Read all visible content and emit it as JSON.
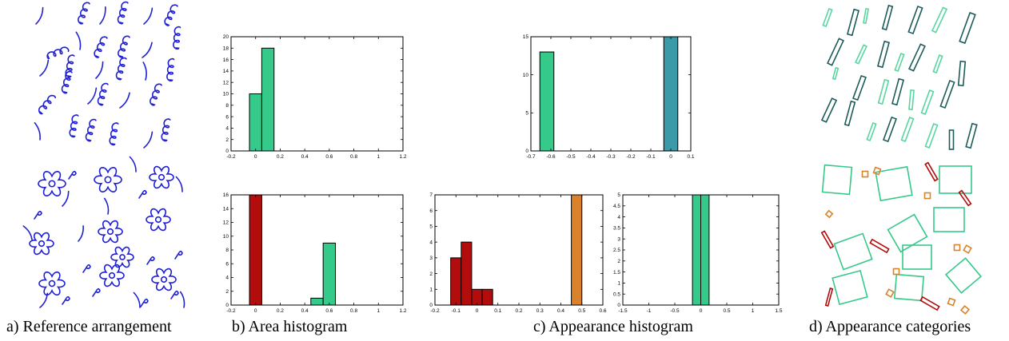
{
  "captions": {
    "a": "a) Reference arrangement",
    "b": "b) Area histogram",
    "c": "c) Appearance histogram",
    "d": "d) Appearance categories"
  },
  "colors": {
    "stroke_blue": "#1f1fd6",
    "green": "#35c98a",
    "teal": "#3a9aa8",
    "red": "#b20c0c",
    "orange": "#d9822b",
    "dark_teal": "#1e5b5b",
    "light_green": "#58d6a0"
  },
  "chart_data": [
    {
      "id": "b_top",
      "type": "bar",
      "xlim": [
        -0.2,
        1.2
      ],
      "ylim": [
        0,
        20
      ],
      "xticks": [
        "-0.2",
        "0",
        "0.2",
        "0.4",
        "0.6",
        "0.8",
        "1",
        "1.2"
      ],
      "yticks": [
        "0",
        "2",
        "4",
        "6",
        "8",
        "10",
        "12",
        "14",
        "16",
        "18",
        "20"
      ],
      "bin_width": 0.1,
      "bars": [
        {
          "center": 0.0,
          "value": 10,
          "color": "green"
        },
        {
          "center": 0.1,
          "value": 18,
          "color": "green"
        }
      ]
    },
    {
      "id": "b_bottom",
      "type": "bar",
      "xlim": [
        -0.2,
        1.2
      ],
      "ylim": [
        0,
        16
      ],
      "xticks": [
        "-0.2",
        "0",
        "0.2",
        "0.4",
        "0.6",
        "0.8",
        "1",
        "1.2"
      ],
      "yticks": [
        "0",
        "2",
        "4",
        "6",
        "8",
        "10",
        "12",
        "14",
        "16"
      ],
      "bin_width": 0.1,
      "bars": [
        {
          "center": 0.0,
          "value": 16,
          "color": "red"
        },
        {
          "center": 0.5,
          "value": 1,
          "color": "green"
        },
        {
          "center": 0.6,
          "value": 9,
          "color": "green"
        }
      ]
    },
    {
      "id": "c_top",
      "type": "bar",
      "xlim": [
        -0.7,
        0.1
      ],
      "ylim": [
        0,
        15
      ],
      "xticks": [
        "-0.7",
        "-0.6",
        "-0.5",
        "-0.4",
        "-0.3",
        "-0.2",
        "-0.1",
        "0",
        "0.1"
      ],
      "yticks": [
        "0",
        "5",
        "10",
        "15"
      ],
      "bin_width": 0.07,
      "bars": [
        {
          "center": -0.62,
          "value": 13,
          "color": "green"
        },
        {
          "center": 0.0,
          "value": 15,
          "color": "teal"
        }
      ]
    },
    {
      "id": "c_bottom_left",
      "type": "bar",
      "xlim": [
        -0.2,
        0.6
      ],
      "ylim": [
        0,
        7
      ],
      "xticks": [
        "-0.2",
        "-0.1",
        "0",
        "0.1",
        "0.2",
        "0.3",
        "0.4",
        "0.5",
        "0.6"
      ],
      "yticks": [
        "0",
        "1",
        "2",
        "3",
        "4",
        "5",
        "6",
        "7"
      ],
      "bin_width": 0.05,
      "bars": [
        {
          "center": -0.1,
          "value": 3,
          "color": "red"
        },
        {
          "center": -0.05,
          "value": 4,
          "color": "red"
        },
        {
          "center": 0.0,
          "value": 1,
          "color": "red"
        },
        {
          "center": 0.05,
          "value": 1,
          "color": "red"
        },
        {
          "center": 0.475,
          "value": 7,
          "color": "orange"
        }
      ]
    },
    {
      "id": "c_bottom_right",
      "type": "bar",
      "xlim": [
        -1.5,
        1.5
      ],
      "ylim": [
        0,
        5
      ],
      "xticks": [
        "-1.5",
        "-1",
        "-0.5",
        "0",
        "0.5",
        "1",
        "1.5"
      ],
      "yticks": [
        "0",
        "0.5",
        "1",
        "1.5",
        "2",
        "2.5",
        "3",
        "3.5",
        "4",
        "4.5",
        "5"
      ],
      "bin_width": 0.16,
      "bars": [
        {
          "center": -0.08,
          "value": 5,
          "color": "green"
        },
        {
          "center": 0.08,
          "value": 5,
          "color": "green"
        }
      ]
    }
  ]
}
